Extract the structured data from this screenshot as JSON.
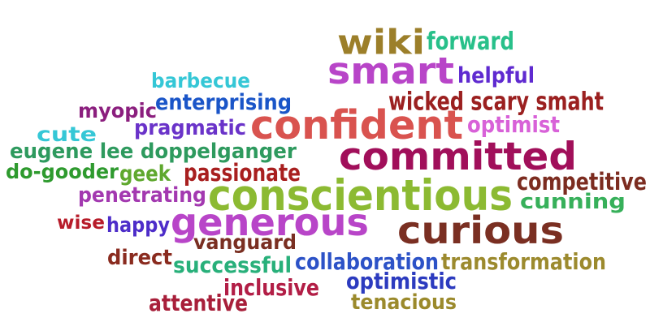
{
  "words": [
    {
      "text": "wiki",
      "color": "#9c7f2a"
    },
    {
      "text": "forward",
      "color": "#28c08a"
    },
    {
      "text": "smart",
      "color": "#b845c8"
    },
    {
      "text": "helpful",
      "color": "#5f2ad0"
    },
    {
      "text": "barbecue",
      "color": "#35c7d6"
    },
    {
      "text": "enterprising",
      "color": "#1a55c8"
    },
    {
      "text": "wicked scary smaht",
      "color": "#9b2020"
    },
    {
      "text": "myopic",
      "color": "#8b1f7e"
    },
    {
      "text": "confident",
      "color": "#d9534f"
    },
    {
      "text": "optimist",
      "color": "#d861d8"
    },
    {
      "text": "cute",
      "color": "#35c7d6"
    },
    {
      "text": "pragmatic",
      "color": "#6a33c9"
    },
    {
      "text": "committed",
      "color": "#a10f5a"
    },
    {
      "text": "eugene lee doppelganger",
      "color": "#2e9a5e"
    },
    {
      "text": "do-gooder",
      "color": "#2e9a2e"
    },
    {
      "text": "geek",
      "color": "#5fa82e"
    },
    {
      "text": "passionate",
      "color": "#a81f1f"
    },
    {
      "text": "competitive",
      "color": "#7c2c20"
    },
    {
      "text": "penetrating",
      "color": "#a339b0"
    },
    {
      "text": "conscientious",
      "color": "#8cba32"
    },
    {
      "text": "cunning",
      "color": "#37b05a"
    },
    {
      "text": "wise",
      "color": "#b71c2a"
    },
    {
      "text": "happy",
      "color": "#4d2dc9"
    },
    {
      "text": "generous",
      "color": "#b845c8"
    },
    {
      "text": "curious",
      "color": "#7a2f22"
    },
    {
      "text": "vanguard",
      "color": "#7a2f22"
    },
    {
      "text": "direct",
      "color": "#8a2b1f"
    },
    {
      "text": "successful",
      "color": "#28b07a"
    },
    {
      "text": "collaboration",
      "color": "#2c52c7"
    },
    {
      "text": "transformation",
      "color": "#9c8a2e"
    },
    {
      "text": "inclusive",
      "color": "#b21e46"
    },
    {
      "text": "optimistic",
      "color": "#2c3bbf"
    },
    {
      "text": "attentive",
      "color": "#a81f3a"
    },
    {
      "text": "tenacious",
      "color": "#9b8a2c"
    }
  ]
}
